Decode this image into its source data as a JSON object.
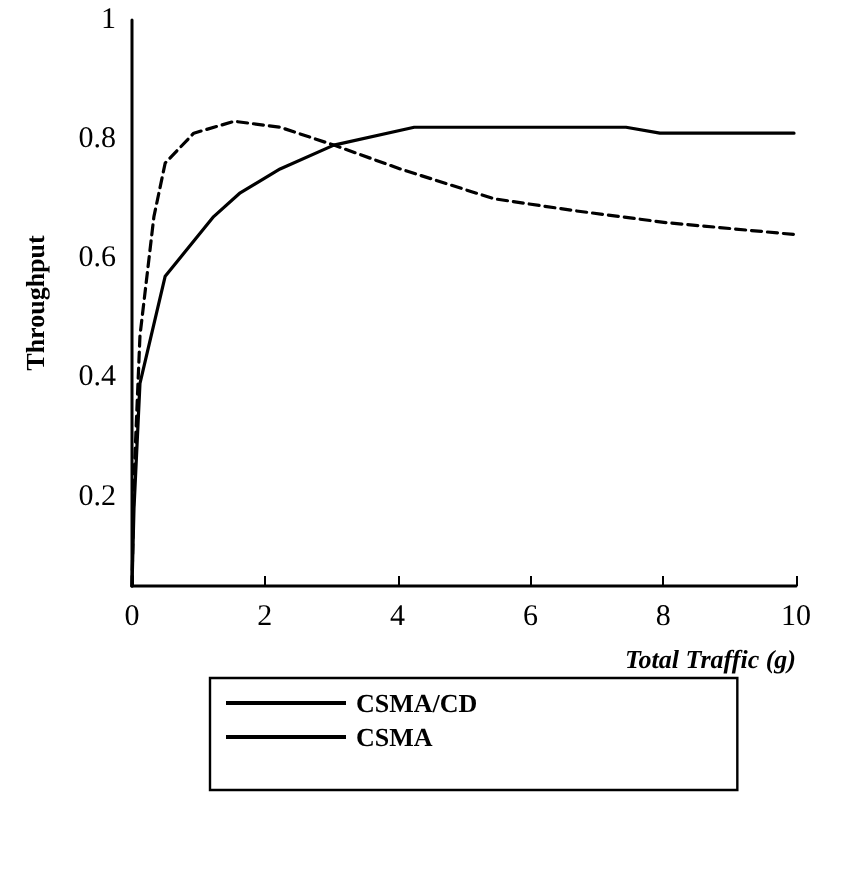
{
  "chart_data": {
    "type": "line",
    "xlabel": "Total Traffic (g)",
    "ylabel": "Throughput",
    "xlim": [
      0,
      10
    ],
    "xticks": [
      0,
      2,
      4,
      6,
      8,
      10
    ],
    "ylim": [
      0.05,
      1
    ],
    "yticks": [
      0.2,
      0.4,
      0.6,
      0.8,
      1
    ],
    "grid": false,
    "legend": "bottom",
    "marker": "none",
    "series": [
      {
        "name": "CSMA/CD",
        "color": "#000000",
        "line_style": "solid",
        "x": [
          0,
          0.03,
          0.12,
          0.5,
          1.23,
          1.63,
          2.23,
          3.04,
          4.25,
          5.45,
          7.44,
          7.95,
          9.97
        ],
        "values": [
          0.05,
          0.18,
          0.39,
          0.57,
          0.67,
          0.71,
          0.75,
          0.79,
          0.82,
          0.82,
          0.82,
          0.81,
          0.81
        ]
      },
      {
        "name": "CSMA",
        "color": "#000000",
        "line_style": "dashed",
        "x": [
          0,
          0.03,
          0.12,
          0.33,
          0.5,
          0.93,
          1.54,
          2.23,
          3.04,
          4.04,
          5.45,
          6.66,
          8.04,
          9.97
        ],
        "values": [
          0.05,
          0.23,
          0.47,
          0.67,
          0.76,
          0.81,
          0.83,
          0.82,
          0.79,
          0.75,
          0.7,
          0.68,
          0.66,
          0.64
        ]
      }
    ]
  }
}
